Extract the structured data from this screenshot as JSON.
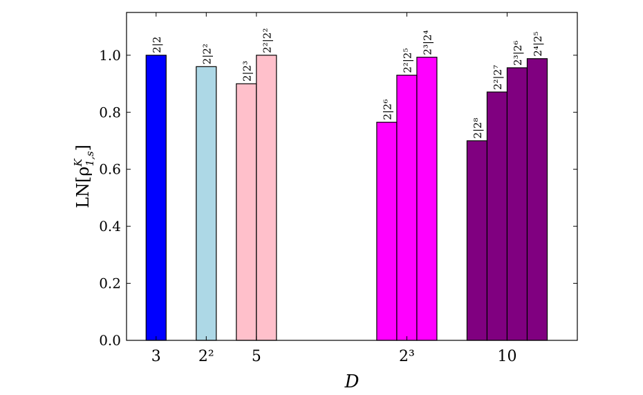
{
  "chart_data": {
    "type": "bar",
    "xlabel": "D",
    "ylabel": "LN[ρ",
    "ylabel_sup": "K",
    "ylabel_sub": "1,s",
    "ylabel_close": "]",
    "xlim": [
      2.41,
      11.4
    ],
    "ylim": [
      0.0,
      1.15
    ],
    "grid": false,
    "bar_width": 0.4,
    "x_ticks": [
      {
        "value": 3,
        "label": "3"
      },
      {
        "value": 4,
        "label": "2²"
      },
      {
        "value": 5,
        "label": "5"
      },
      {
        "value": 8,
        "label": "2³"
      },
      {
        "value": 10,
        "label": "10"
      }
    ],
    "y_ticks": [
      {
        "value": 0.0,
        "label": "0.0"
      },
      {
        "value": 0.2,
        "label": "0.2"
      },
      {
        "value": 0.4,
        "label": "0.4"
      },
      {
        "value": 0.6,
        "label": "0.6"
      },
      {
        "value": 0.8,
        "label": "0.8"
      },
      {
        "value": 1.0,
        "label": "1.0"
      }
    ],
    "groups": [
      {
        "x": 3,
        "color": "#0000ff",
        "bars": [
          {
            "label": "2|2",
            "value": 1.0
          }
        ]
      },
      {
        "x": 4,
        "color": "#add8e6",
        "bars": [
          {
            "label": "2|2²",
            "value": 0.96
          }
        ]
      },
      {
        "x": 5,
        "color": "#ffc0cb",
        "bars": [
          {
            "label": "2|2³",
            "value": 0.9
          },
          {
            "label": "2²|2²",
            "value": 1.0
          }
        ]
      },
      {
        "x": 8,
        "color": "#ff00ff",
        "bars": [
          {
            "label": "2|2⁶",
            "value": 0.765
          },
          {
            "label": "2²|2⁵",
            "value": 0.93
          },
          {
            "label": "2³|2⁴",
            "value": 0.993
          }
        ]
      },
      {
        "x": 10,
        "color": "#800080",
        "bars": [
          {
            "label": "2|2⁸",
            "value": 0.7
          },
          {
            "label": "2²|2⁷",
            "value": 0.871
          },
          {
            "label": "2³|2⁶",
            "value": 0.956
          },
          {
            "label": "2⁴|2⁵",
            "value": 0.988
          }
        ]
      }
    ]
  }
}
